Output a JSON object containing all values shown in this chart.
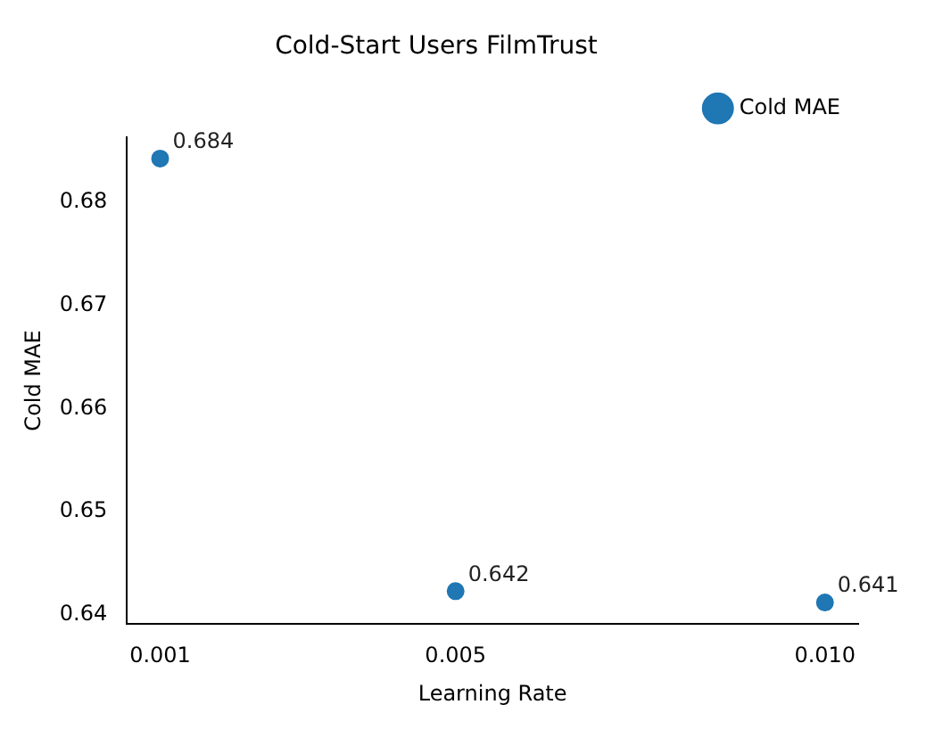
{
  "chart_data": {
    "type": "scatter",
    "title": "Cold-Start Users FilmTrust",
    "xlabel": "Learning Rate",
    "ylabel": "Cold MAE",
    "x": [
      0.001,
      0.005,
      0.01
    ],
    "series": [
      {
        "name": "Cold MAE",
        "color": "#1f77b4",
        "values": [
          0.6842,
          0.6423,
          0.6412
        ],
        "value_labels": [
          "0.684",
          "0.642",
          "0.641"
        ]
      }
    ],
    "xlim": [
      0.00055,
      0.01045
    ],
    "xticks": [
      0.001,
      0.005,
      {
        "value": 0.01,
        "label": "0.010"
      }
    ],
    "ylim": [
      0.6391,
      0.6863
    ],
    "yticks": [
      0.64,
      0.65,
      0.66,
      0.67,
      0.68
    ],
    "grid": false,
    "legend": "top right",
    "marker": "circle"
  }
}
